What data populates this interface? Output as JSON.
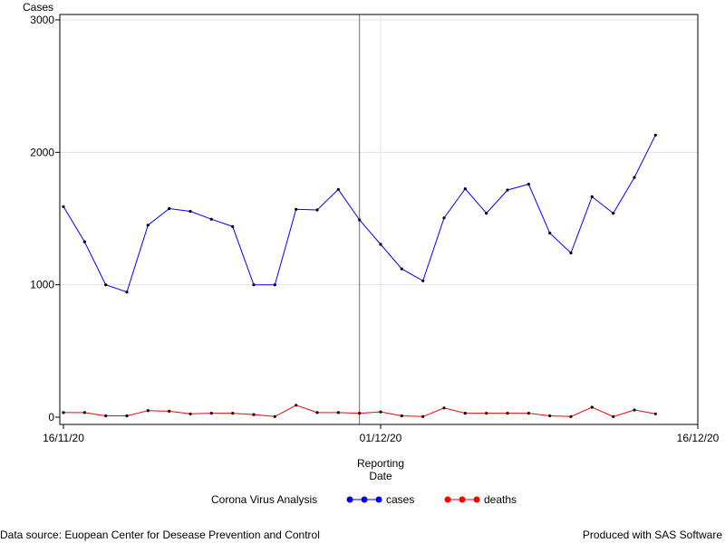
{
  "chart_data": {
    "type": "line",
    "title": "",
    "ylabel": "Cases",
    "xlabel_lines": [
      "Reporting",
      "Date"
    ],
    "x_ticks": [
      "16/11/20",
      "01/12/20",
      "16/12/20"
    ],
    "y_ticks": [
      0,
      1000,
      2000,
      3000
    ],
    "ylim": [
      0,
      3000
    ],
    "x": [
      "16/11/20",
      "17/11/20",
      "18/11/20",
      "19/11/20",
      "20/11/20",
      "21/11/20",
      "22/11/20",
      "23/11/20",
      "24/11/20",
      "25/11/20",
      "26/11/20",
      "27/11/20",
      "28/11/20",
      "29/11/20",
      "30/11/20",
      "01/12/20",
      "02/12/20",
      "03/12/20",
      "04/12/20",
      "05/12/20",
      "06/12/20",
      "07/12/20",
      "08/12/20",
      "09/12/20",
      "10/12/20",
      "11/12/20",
      "12/12/20",
      "13/12/20",
      "14/12/20"
    ],
    "reference_line_x": "30/11/20",
    "grid": true,
    "legend_title": "Corona Virus Analysis",
    "legend_position": "bottom",
    "series": [
      {
        "name": "cases",
        "color": "#0000ff",
        "values": [
          1590,
          1325,
          1000,
          945,
          1450,
          1575,
          1555,
          1495,
          1440,
          1000,
          1000,
          1570,
          1565,
          1720,
          1490,
          1305,
          1120,
          1030,
          1505,
          1725,
          1540,
          1715,
          1760,
          1390,
          1240,
          1665,
          1540,
          1810,
          2130
        ]
      },
      {
        "name": "deaths",
        "color": "#ff0000",
        "values": [
          35,
          35,
          10,
          10,
          50,
          45,
          25,
          30,
          30,
          20,
          5,
          90,
          35,
          35,
          30,
          40,
          10,
          5,
          70,
          30,
          30,
          30,
          30,
          10,
          5,
          75,
          5,
          55,
          25
        ]
      }
    ]
  },
  "footer": {
    "left": "Data source: Euopean Center for Desease Prevention and Control",
    "right": "Produced with SAS Software"
  }
}
